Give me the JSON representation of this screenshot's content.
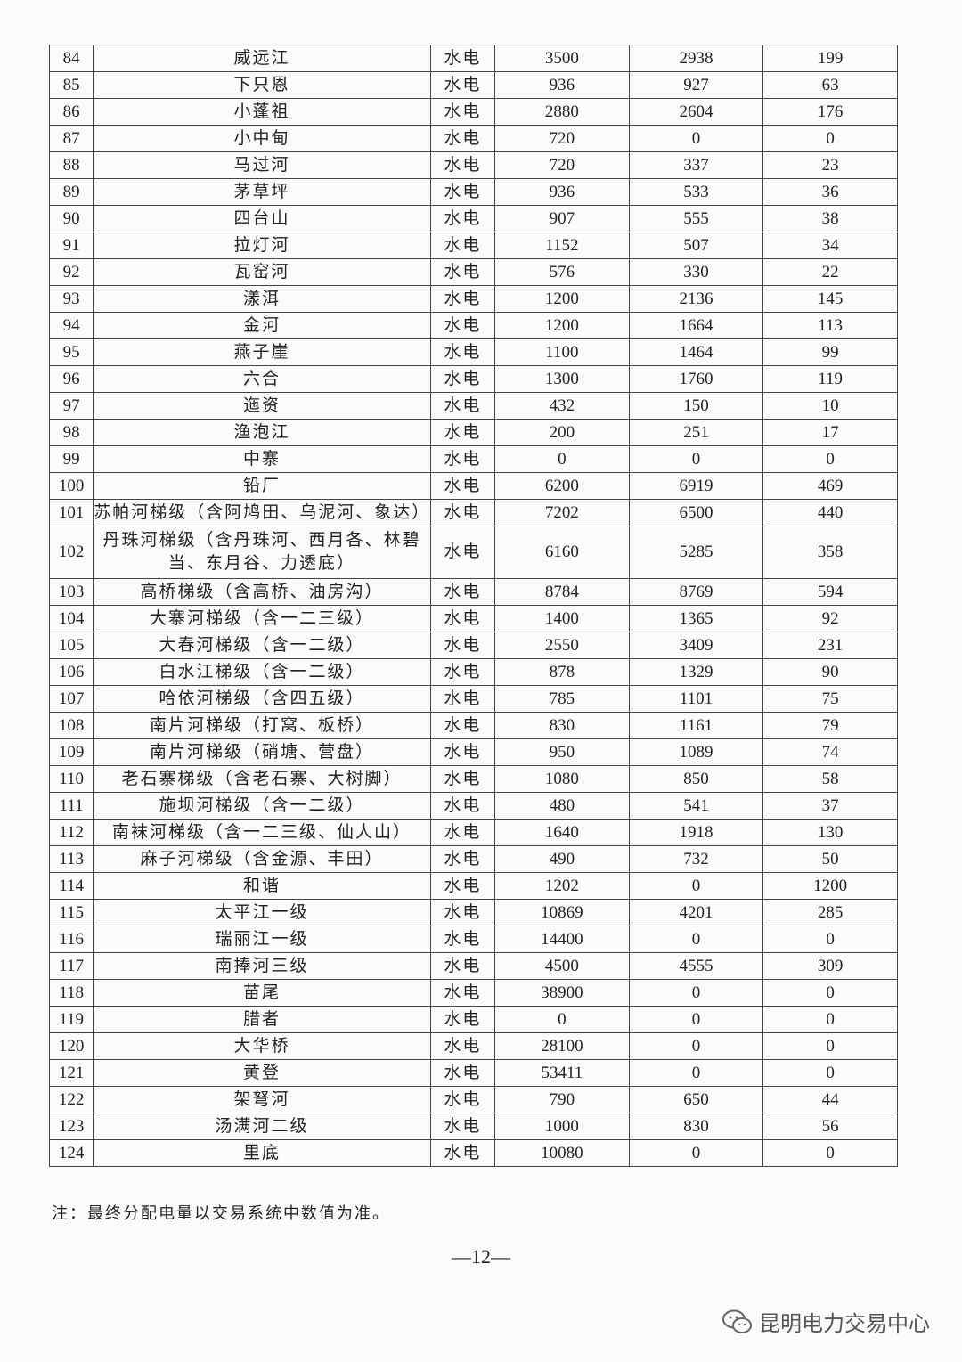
{
  "type_label": "水电",
  "rows": [
    {
      "no": "84",
      "name": "威远江",
      "c1": "3500",
      "c2": "2938",
      "c3": "199"
    },
    {
      "no": "85",
      "name": "下只恩",
      "c1": "936",
      "c2": "927",
      "c3": "63"
    },
    {
      "no": "86",
      "name": "小蓬祖",
      "c1": "2880",
      "c2": "2604",
      "c3": "176"
    },
    {
      "no": "87",
      "name": "小中甸",
      "c1": "720",
      "c2": "0",
      "c3": "0"
    },
    {
      "no": "88",
      "name": "马过河",
      "c1": "720",
      "c2": "337",
      "c3": "23"
    },
    {
      "no": "89",
      "name": "茅草坪",
      "c1": "936",
      "c2": "533",
      "c3": "36"
    },
    {
      "no": "90",
      "name": "四台山",
      "c1": "907",
      "c2": "555",
      "c3": "38"
    },
    {
      "no": "91",
      "name": "拉灯河",
      "c1": "1152",
      "c2": "507",
      "c3": "34"
    },
    {
      "no": "92",
      "name": "瓦窑河",
      "c1": "576",
      "c2": "330",
      "c3": "22"
    },
    {
      "no": "93",
      "name": "漾洱",
      "c1": "1200",
      "c2": "2136",
      "c3": "145"
    },
    {
      "no": "94",
      "name": "金河",
      "c1": "1200",
      "c2": "1664",
      "c3": "113"
    },
    {
      "no": "95",
      "name": "燕子崖",
      "c1": "1100",
      "c2": "1464",
      "c3": "99"
    },
    {
      "no": "96",
      "name": "六合",
      "c1": "1300",
      "c2": "1760",
      "c3": "119"
    },
    {
      "no": "97",
      "name": "迤资",
      "c1": "432",
      "c2": "150",
      "c3": "10"
    },
    {
      "no": "98",
      "name": "渔泡江",
      "c1": "200",
      "c2": "251",
      "c3": "17"
    },
    {
      "no": "99",
      "name": "中寨",
      "c1": "0",
      "c2": "0",
      "c3": "0"
    },
    {
      "no": "100",
      "name": "铅厂",
      "c1": "6200",
      "c2": "6919",
      "c3": "469"
    },
    {
      "no": "101",
      "name": "苏帕河梯级（含阿鸠田、乌泥河、象达）",
      "c1": "7202",
      "c2": "6500",
      "c3": "440"
    },
    {
      "no": "102",
      "name": "丹珠河梯级（含丹珠河、西月各、林碧当、东月谷、力透底）",
      "c1": "6160",
      "c2": "5285",
      "c3": "358"
    },
    {
      "no": "103",
      "name": "高桥梯级（含高桥、油房沟）",
      "c1": "8784",
      "c2": "8769",
      "c3": "594"
    },
    {
      "no": "104",
      "name": "大寨河梯级（含一二三级）",
      "c1": "1400",
      "c2": "1365",
      "c3": "92"
    },
    {
      "no": "105",
      "name": "大春河梯级（含一二级）",
      "c1": "2550",
      "c2": "3409",
      "c3": "231"
    },
    {
      "no": "106",
      "name": "白水江梯级（含一二级）",
      "c1": "878",
      "c2": "1329",
      "c3": "90"
    },
    {
      "no": "107",
      "name": "哈依河梯级（含四五级）",
      "c1": "785",
      "c2": "1101",
      "c3": "75"
    },
    {
      "no": "108",
      "name": "南片河梯级（打窝、板桥）",
      "c1": "830",
      "c2": "1161",
      "c3": "79"
    },
    {
      "no": "109",
      "name": "南片河梯级（硝塘、营盘）",
      "c1": "950",
      "c2": "1089",
      "c3": "74"
    },
    {
      "no": "110",
      "name": "老石寨梯级（含老石寨、大树脚）",
      "c1": "1080",
      "c2": "850",
      "c3": "58"
    },
    {
      "no": "111",
      "name": "施坝河梯级（含一二级）",
      "c1": "480",
      "c2": "541",
      "c3": "37"
    },
    {
      "no": "112",
      "name": "南袜河梯级（含一二三级、仙人山）",
      "c1": "1640",
      "c2": "1918",
      "c3": "130"
    },
    {
      "no": "113",
      "name": "麻子河梯级（含金源、丰田）",
      "c1": "490",
      "c2": "732",
      "c3": "50"
    },
    {
      "no": "114",
      "name": "和谐",
      "c1": "1202",
      "c2": "0",
      "c3": "1200"
    },
    {
      "no": "115",
      "name": "太平江一级",
      "c1": "10869",
      "c2": "4201",
      "c3": "285"
    },
    {
      "no": "116",
      "name": "瑞丽江一级",
      "c1": "14400",
      "c2": "0",
      "c3": "0"
    },
    {
      "no": "117",
      "name": "南捧河三级",
      "c1": "4500",
      "c2": "4555",
      "c3": "309"
    },
    {
      "no": "118",
      "name": "苗尾",
      "c1": "38900",
      "c2": "0",
      "c3": "0"
    },
    {
      "no": "119",
      "name": "腊者",
      "c1": "0",
      "c2": "0",
      "c3": "0"
    },
    {
      "no": "120",
      "name": "大华桥",
      "c1": "28100",
      "c2": "0",
      "c3": "0"
    },
    {
      "no": "121",
      "name": "黄登",
      "c1": "53411",
      "c2": "0",
      "c3": "0"
    },
    {
      "no": "122",
      "name": "架弩河",
      "c1": "790",
      "c2": "650",
      "c3": "44"
    },
    {
      "no": "123",
      "name": "汤满河二级",
      "c1": "1000",
      "c2": "830",
      "c3": "56"
    },
    {
      "no": "124",
      "name": "里底",
      "c1": "10080",
      "c2": "0",
      "c3": "0"
    }
  ],
  "note": "注：最终分配电量以交易系统中数值为准。",
  "page_number": "—12—",
  "watermark": {
    "text": "昆明电力交易中心",
    "icon": "wechat-icon"
  }
}
